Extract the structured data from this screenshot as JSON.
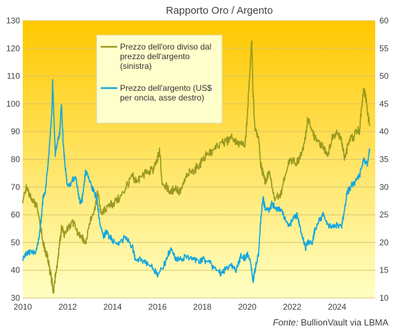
{
  "chart_data": {
    "type": "line",
    "title": "Rapporto Oro / Argento",
    "source_label": "Fonte:",
    "source_text": "BullionVault via LBMA",
    "x_axis": {
      "range": [
        2010,
        2025.7
      ],
      "ticks": [
        "2010",
        "2012",
        "2014",
        "2016",
        "2018",
        "2020",
        "2022",
        "2024"
      ]
    },
    "y_left": {
      "range": [
        30,
        130
      ],
      "ticks": [
        30,
        40,
        50,
        60,
        70,
        80,
        90,
        100,
        110,
        120,
        130
      ]
    },
    "y_right": {
      "range": [
        10,
        60
      ],
      "ticks": [
        10,
        15,
        20,
        25,
        30,
        35,
        40,
        45,
        50,
        55,
        60
      ]
    },
    "grid": "horizontal",
    "legend_position": "top-center",
    "colors": {
      "background_top": "#ffc800",
      "background_bottom": "#ffffc4",
      "grid": "#d9c36a"
    },
    "series": [
      {
        "name": "Prezzo dell'oro diviso dal prezzo dell'argento (sinistra)",
        "legend_lines": [
          "Prezzo dell'oro diviso dal",
          "prezzo dell'argento",
          "(sinistra)"
        ],
        "axis": "left",
        "color": "#9a9a20",
        "x": [
          2010.0,
          2010.15,
          2010.3,
          2010.45,
          2010.6,
          2010.75,
          2010.9,
          2011.0,
          2011.1,
          2011.2,
          2011.3,
          2011.35,
          2011.45,
          2011.55,
          2011.65,
          2011.75,
          2011.85,
          2012.0,
          2012.2,
          2012.4,
          2012.6,
          2012.8,
          2013.0,
          2013.2,
          2013.35,
          2013.5,
          2013.7,
          2013.9,
          2014.0,
          2014.3,
          2014.6,
          2014.9,
          2015.0,
          2015.2,
          2015.5,
          2015.8,
          2016.0,
          2016.1,
          2016.2,
          2016.4,
          2016.6,
          2016.8,
          2017.0,
          2017.3,
          2017.6,
          2017.9,
          2018.0,
          2018.3,
          2018.6,
          2018.9,
          2019.0,
          2019.3,
          2019.6,
          2019.9,
          2020.0,
          2020.1,
          2020.2,
          2020.25,
          2020.35,
          2020.5,
          2020.6,
          2020.7,
          2020.8,
          2021.0,
          2021.2,
          2021.5,
          2021.8,
          2022.0,
          2022.2,
          2022.4,
          2022.6,
          2022.7,
          2022.9,
          2023.0,
          2023.2,
          2023.4,
          2023.6,
          2023.8,
          2024.0,
          2024.2,
          2024.35,
          2024.5,
          2024.7,
          2024.9,
          2025.0,
          2025.1,
          2025.2,
          2025.3,
          2025.45
        ],
        "values": [
          65,
          70,
          67,
          65,
          64,
          58,
          50,
          47,
          45,
          40,
          36,
          32,
          38,
          43,
          50,
          56,
          52,
          55,
          58,
          54,
          52,
          50,
          58,
          62,
          68,
          60,
          62,
          64,
          64,
          66,
          70,
          74,
          72,
          73,
          75,
          76,
          80,
          83,
          72,
          70,
          68,
          70,
          68,
          74,
          76,
          78,
          80,
          82,
          84,
          86,
          86,
          88,
          86,
          85,
          95,
          110,
          123,
          105,
          90,
          88,
          78,
          75,
          72,
          75,
          66,
          68,
          78,
          80,
          78,
          82,
          88,
          95,
          90,
          88,
          86,
          84,
          82,
          88,
          90,
          87,
          80,
          86,
          88,
          90,
          90,
          100,
          106,
          101,
          92
        ]
      },
      {
        "name": "Prezzo dell'argento (US$ per oncia, asse destro)",
        "legend_lines": [
          "Prezzo dell'argento (US$",
          "per oncia, asse destro)"
        ],
        "axis": "right",
        "color": "#14a6e0",
        "x": [
          2010.0,
          2010.1,
          2010.2,
          2010.35,
          2010.5,
          2010.65,
          2010.8,
          2010.9,
          2011.0,
          2011.1,
          2011.2,
          2011.3,
          2011.33,
          2011.4,
          2011.45,
          2011.55,
          2011.65,
          2011.72,
          2011.8,
          2011.9,
          2012.0,
          2012.2,
          2012.35,
          2012.5,
          2012.6,
          2012.7,
          2012.8,
          2013.0,
          2013.2,
          2013.3,
          2013.45,
          2013.6,
          2013.7,
          2013.9,
          2014.0,
          2014.3,
          2014.6,
          2014.9,
          2015.0,
          2015.3,
          2015.6,
          2015.9,
          2016.0,
          2016.3,
          2016.5,
          2016.6,
          2016.8,
          2017.0,
          2017.3,
          2017.6,
          2017.9,
          2018.0,
          2018.3,
          2018.6,
          2018.9,
          2019.0,
          2019.3,
          2019.5,
          2019.7,
          2019.9,
          2020.0,
          2020.15,
          2020.25,
          2020.35,
          2020.5,
          2020.6,
          2020.7,
          2020.8,
          2021.0,
          2021.1,
          2021.3,
          2021.5,
          2021.7,
          2021.9,
          2022.0,
          2022.2,
          2022.4,
          2022.6,
          2022.7,
          2022.9,
          2023.0,
          2023.2,
          2023.4,
          2023.6,
          2023.8,
          2024.0,
          2024.2,
          2024.3,
          2024.45,
          2024.6,
          2024.8,
          2025.0,
          2025.2,
          2025.35,
          2025.45
        ],
        "values": [
          17,
          17.5,
          18,
          18.5,
          18,
          19,
          23,
          28,
          29,
          33,
          38,
          44,
          49,
          41,
          36,
          38,
          40,
          45,
          38,
          33,
          30,
          31,
          32,
          28,
          27,
          29,
          33,
          31,
          29,
          28,
          23,
          21,
          22,
          21,
          20,
          20,
          21,
          19,
          17,
          17,
          16,
          15,
          14,
          16,
          18,
          19,
          17,
          17,
          17.5,
          17,
          16.5,
          17,
          16.5,
          15,
          14.5,
          15,
          16,
          15,
          17.5,
          17,
          18,
          16.5,
          13,
          15,
          18,
          24,
          28,
          26,
          26,
          27,
          26,
          26,
          24,
          23,
          24,
          25,
          22,
          19,
          20,
          20,
          22,
          24,
          25,
          23,
          23,
          23,
          23,
          25,
          29,
          30,
          31,
          32,
          35,
          34,
          37
        ]
      }
    ]
  }
}
